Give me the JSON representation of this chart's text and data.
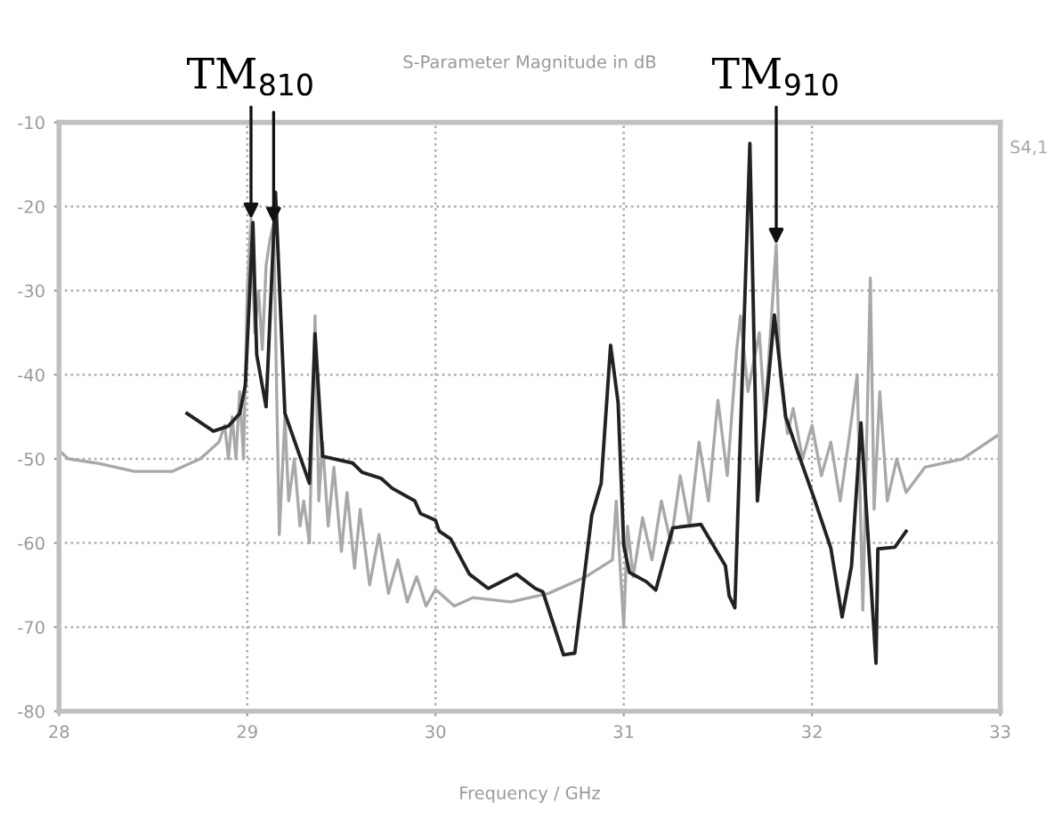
{
  "chart_data": {
    "type": "line",
    "title": "S-Parameter Magnitude in dB",
    "xlabel": "Frequency / GHz",
    "xlim": [
      28,
      33
    ],
    "xticks": [
      28,
      29,
      30,
      31,
      32,
      33
    ],
    "ylim": [
      -80,
      -10
    ],
    "yticks": [
      -80,
      -70,
      -60,
      -50,
      -40,
      -30,
      -20,
      -10
    ],
    "grid": true,
    "legend": false,
    "marker": "none",
    "line_style": "solid",
    "series": [
      {
        "name": "S4,1",
        "color": "#a8a8a8",
        "x": [
          28.0,
          28.05,
          28.2,
          28.4,
          28.6,
          28.75,
          28.85,
          28.88,
          28.9,
          28.92,
          28.94,
          28.96,
          28.98,
          29.0,
          29.02,
          29.04,
          29.06,
          29.08,
          29.1,
          29.12,
          29.14,
          29.17,
          29.2,
          29.22,
          29.25,
          29.28,
          29.3,
          29.33,
          29.36,
          29.38,
          29.4,
          29.43,
          29.46,
          29.5,
          29.53,
          29.57,
          29.6,
          29.65,
          29.7,
          29.75,
          29.8,
          29.85,
          29.9,
          29.95,
          30.0,
          30.1,
          30.2,
          30.4,
          30.6,
          30.8,
          30.94,
          30.96,
          31.0,
          31.02,
          31.05,
          31.1,
          31.15,
          31.2,
          31.25,
          31.3,
          31.35,
          31.4,
          31.45,
          31.5,
          31.55,
          31.6,
          31.62,
          31.66,
          31.72,
          31.75,
          31.81,
          31.83,
          31.87,
          31.9,
          31.95,
          32.0,
          32.05,
          32.1,
          32.15,
          32.2,
          32.24,
          32.27,
          32.31,
          32.33,
          32.36,
          32.4,
          32.45,
          32.5,
          32.6,
          32.8,
          33.0
        ],
        "values": [
          -49,
          -50,
          -50.5,
          -51.5,
          -51.5,
          -50,
          -48,
          -46,
          -50,
          -45,
          -50,
          -42,
          -50,
          -30,
          -21.5,
          -35,
          -30,
          -37,
          -27,
          -24,
          -22,
          -59,
          -45,
          -55,
          -50,
          -58,
          -55,
          -60,
          -33,
          -55,
          -48,
          -58,
          -51,
          -61,
          -54,
          -63,
          -56,
          -65,
          -59,
          -66,
          -62,
          -67,
          -64,
          -67.5,
          -65.5,
          -67.5,
          -66.5,
          -67,
          -66,
          -64,
          -62,
          -55,
          -70,
          -58,
          -64,
          -57,
          -62,
          -55,
          -60,
          -52,
          -58,
          -48,
          -55,
          -43,
          -52,
          -37,
          -33,
          -42,
          -35,
          -45,
          -24.5,
          -40,
          -47,
          -44,
          -50,
          -46,
          -52,
          -48,
          -55,
          -47,
          -40,
          -68,
          -28.5,
          -56,
          -42,
          -55,
          -50,
          -54,
          -51,
          -50,
          -47
        ]
      },
      {
        "color": "#222222",
        "x": [
          28.68,
          28.82,
          28.9,
          28.96,
          28.99,
          29.03,
          29.05,
          29.1,
          29.15,
          29.2,
          29.33,
          29.36,
          29.4,
          29.56,
          29.61,
          29.71,
          29.77,
          29.89,
          29.92,
          30.0,
          30.02,
          30.08,
          30.18,
          30.28,
          30.43,
          30.53,
          30.57,
          30.68,
          30.74,
          30.83,
          30.88,
          30.93,
          30.97,
          31.0,
          31.03,
          31.12,
          31.17,
          31.26,
          31.41,
          31.54,
          31.56,
          31.59,
          31.67,
          31.71,
          31.8,
          31.86,
          31.92,
          32.01,
          32.1,
          32.16,
          32.21,
          32.26,
          32.34,
          32.35,
          32.44,
          32.5
        ],
        "values": [
          -44.6,
          -46.7,
          -46.1,
          -44.6,
          -41.2,
          -21.9,
          -37.6,
          -43.8,
          -18.3,
          -44.6,
          -52.9,
          -35.1,
          -49.7,
          -50.5,
          -51.6,
          -52.3,
          -53.5,
          -55,
          -56.5,
          -57.3,
          -58.6,
          -59.5,
          -63.7,
          -65.4,
          -63.7,
          -65.4,
          -65.8,
          -73.3,
          -73.1,
          -56.7,
          -52.9,
          -36.5,
          -43.3,
          -60.3,
          -63.5,
          -64.6,
          -65.6,
          -58.2,
          -57.8,
          -62.7,
          -66.3,
          -67.7,
          -12.5,
          -55,
          -32.9,
          -45,
          -48.9,
          -54.6,
          -60.6,
          -68.8,
          -62.7,
          -45.7,
          -74.3,
          -60.7,
          -60.5,
          -58.6
        ]
      }
    ],
    "annotations": [
      {
        "text": "TM$_{810}$",
        "x": 29.02,
        "y": -21.5
      },
      {
        "text": "TM$_{910}$",
        "x": 31.81,
        "y": -24.5
      }
    ]
  }
}
